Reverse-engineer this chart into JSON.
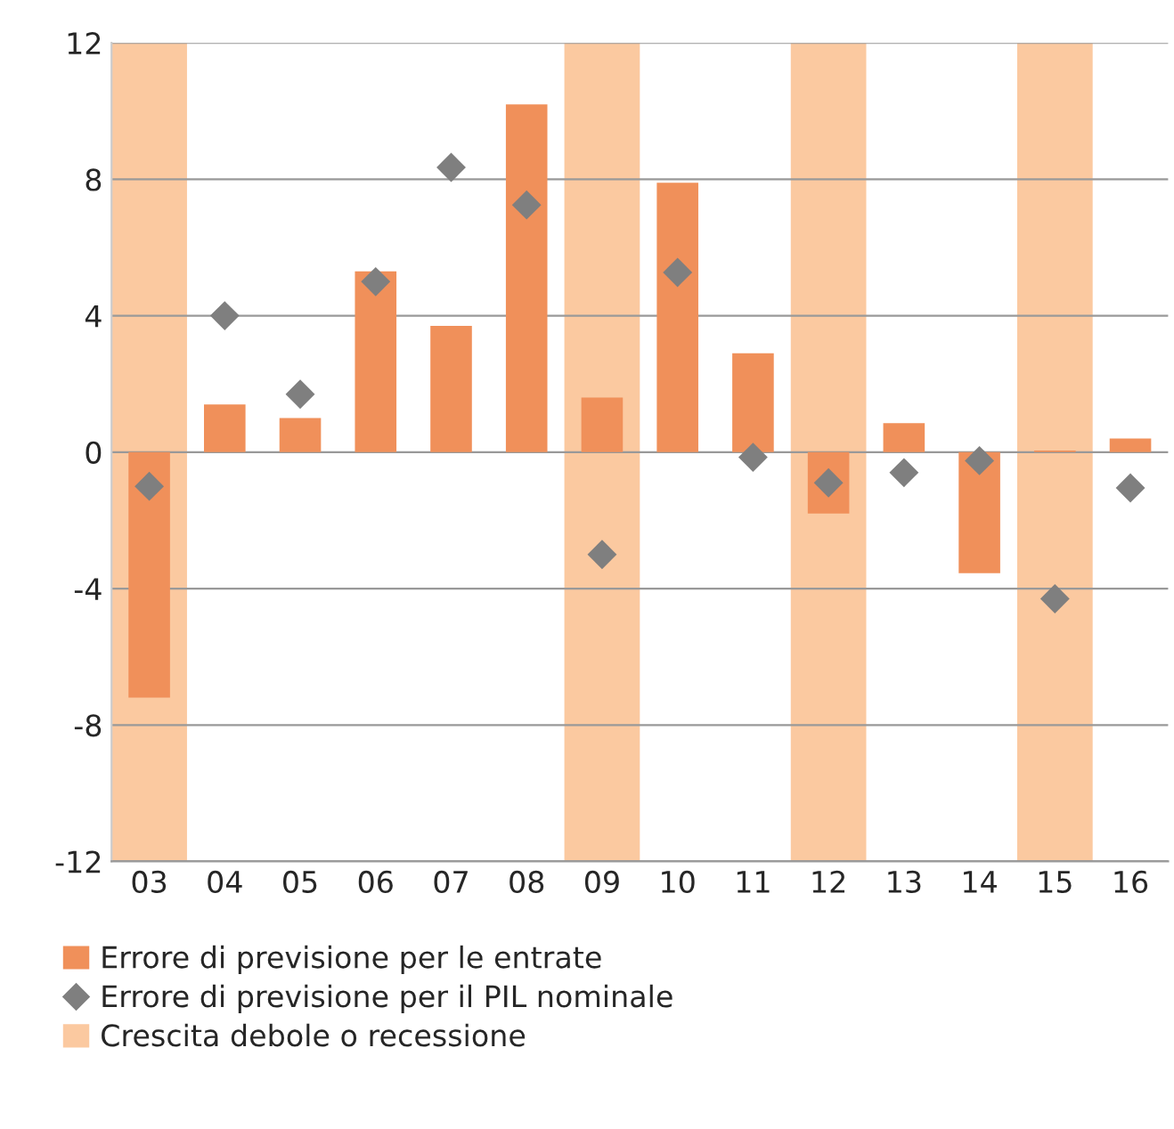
{
  "chart_data": {
    "type": "bar",
    "categories": [
      "03",
      "04",
      "05",
      "06",
      "07",
      "08",
      "09",
      "10",
      "11",
      "12",
      "13",
      "14",
      "15",
      "16"
    ],
    "series": [
      {
        "name": "Errore di previsione per le entrate",
        "color": "#f0905a",
        "values": [
          -7.2,
          1.4,
          1.0,
          5.3,
          3.7,
          10.2,
          1.6,
          7.9,
          2.9,
          -1.8,
          0.85,
          -3.55,
          0.05,
          0.4
        ]
      },
      {
        "name": "Errore di previsione per il PIL nominale",
        "type": "scatter",
        "color": "#7f7f7f",
        "marker": "diamond",
        "values": [
          -1.0,
          4.0,
          1.7,
          5.0,
          8.35,
          7.25,
          -3.0,
          5.27,
          -0.15,
          -0.9,
          -0.6,
          -0.25,
          -4.3,
          -1.05
        ]
      }
    ],
    "bands": [
      {
        "axis": "x",
        "from": "03",
        "to": "03",
        "label": "Crescita debole o recessione",
        "color": "#fbc9a0"
      },
      {
        "axis": "x",
        "from": "09",
        "to": "09",
        "color": "#fbc9a0"
      },
      {
        "axis": "x",
        "from": "12",
        "to": "12",
        "color": "#fbc9a0"
      },
      {
        "axis": "x",
        "from": "15",
        "to": "15",
        "color": "#fbc9a0"
      }
    ],
    "ylim": [
      -12,
      12
    ],
    "yticks": [
      -12,
      -8,
      -4,
      0,
      4,
      8,
      12
    ],
    "grid": "y",
    "legend": "bottom"
  }
}
